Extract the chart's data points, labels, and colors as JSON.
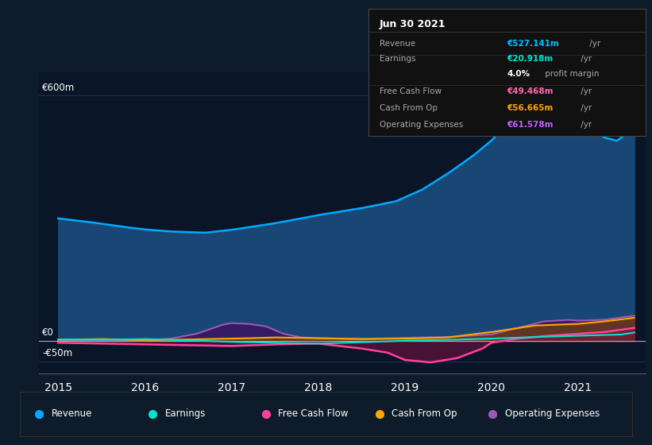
{
  "bg_color": "#0d1b2a",
  "plot_bg_color": "#0a1628",
  "grid_color": "#1e3050",
  "info_box": {
    "date": "Jun 30 2021",
    "rows": [
      {
        "label": "Revenue",
        "value": "€527.141m",
        "unit": " /yr",
        "value_color": "#00bfff",
        "divider": true
      },
      {
        "label": "Earnings",
        "value": "€20.918m",
        "unit": " /yr",
        "value_color": "#00e5cc",
        "divider": false
      },
      {
        "label": "",
        "value": "4.0%",
        "unit": " profit margin",
        "value_color": "#ffffff",
        "divider": true
      },
      {
        "label": "Free Cash Flow",
        "value": "€49.468m",
        "unit": " /yr",
        "value_color": "#ff69b4",
        "divider": false
      },
      {
        "label": "Cash From Op",
        "value": "€56.665m",
        "unit": " /yr",
        "value_color": "#ffa500",
        "divider": false
      },
      {
        "label": "Operating Expenses",
        "value": "€61.578m",
        "unit": " /yr",
        "value_color": "#bf5fff",
        "divider": false
      }
    ]
  },
  "ylim": [
    -80,
    660
  ],
  "xlim": [
    2014.78,
    2021.78
  ],
  "x_ticks": [
    2015,
    2016,
    2017,
    2018,
    2019,
    2020,
    2021
  ],
  "y_label_positions": [
    {
      "text": "€600m",
      "y": 600
    },
    {
      "text": "€0",
      "y": 0
    },
    {
      "text": "-€50m",
      "y": -50
    }
  ],
  "series": {
    "revenue": {
      "color": "#00aaff",
      "fill": "#1a4a7a",
      "lw": 1.8
    },
    "earnings": {
      "color": "#00e5cc",
      "fill": null,
      "lw": 1.5
    },
    "free_cash_flow": {
      "color": "#ff40a0",
      "fill": "#7a1040",
      "lw": 1.8
    },
    "cash_from_op": {
      "color": "#ffa500",
      "fill": "#7a4400",
      "lw": 1.5
    },
    "operating_expenses": {
      "color": "#9b59b6",
      "fill": "#3a1560",
      "lw": 1.5
    }
  },
  "legend": [
    {
      "label": "Revenue",
      "color": "#00aaff"
    },
    {
      "label": "Earnings",
      "color": "#00e5cc"
    },
    {
      "label": "Free Cash Flow",
      "color": "#ff40a0"
    },
    {
      "label": "Cash From Op",
      "color": "#ffa500"
    },
    {
      "label": "Operating Expenses",
      "color": "#9b59b6"
    }
  ]
}
